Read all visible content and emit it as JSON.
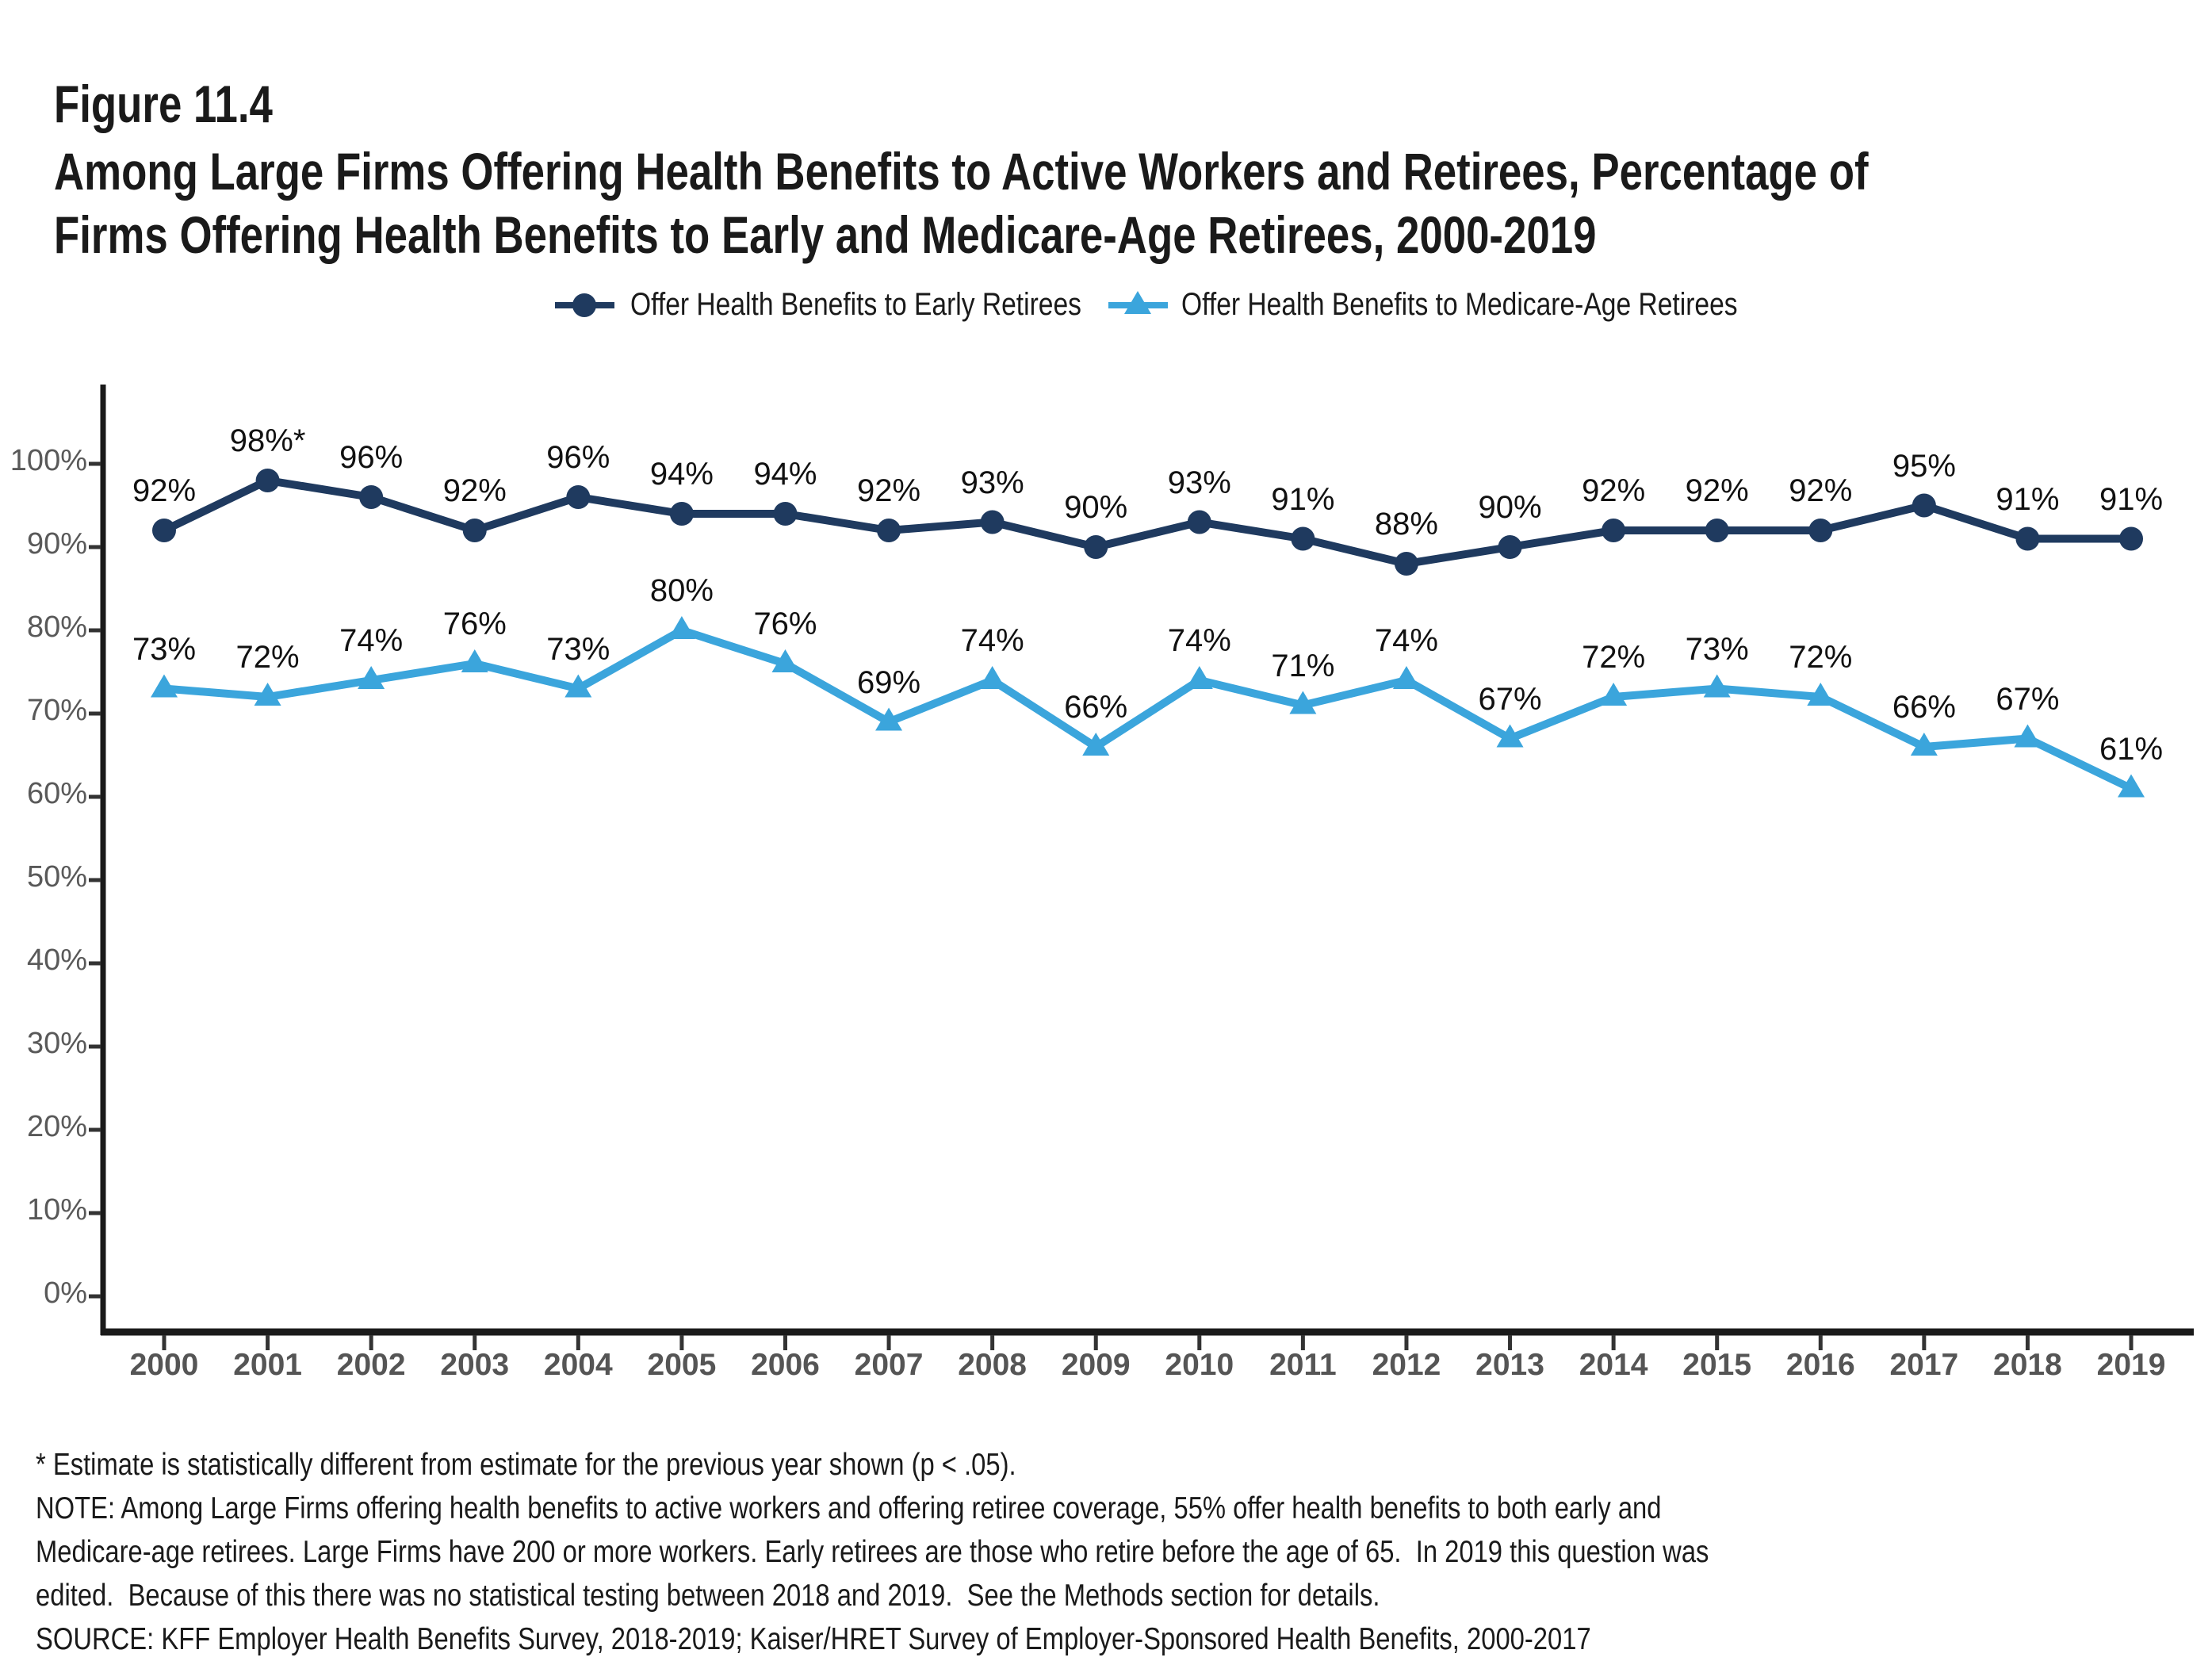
{
  "figure_label": "Figure 11.4",
  "title_line1": "Among Large Firms Offering Health Benefits to Active Workers and Retirees, Percentage of",
  "title_line2": "Firms Offering Health Benefits to Early and Medicare-Age Retirees, 2000-2019",
  "legend": [
    {
      "label": "Offer Health Benefits to Early Retirees",
      "marker": "circle-on-line",
      "color": "#1F3A5F"
    },
    {
      "label": "Offer Health Benefits to Medicare-Age Retirees",
      "marker": "triangle-on-line",
      "color": "#3BA5DC"
    }
  ],
  "chart_data": {
    "type": "line",
    "x": [
      2000,
      2001,
      2002,
      2003,
      2004,
      2005,
      2006,
      2007,
      2008,
      2009,
      2010,
      2011,
      2012,
      2013,
      2014,
      2015,
      2016,
      2017,
      2018,
      2019
    ],
    "series": [
      {
        "name": "Offer Health Benefits to Early Retirees",
        "color": "#1F3A5F",
        "marker": "circle",
        "values": [
          92,
          98,
          96,
          92,
          96,
          94,
          94,
          92,
          93,
          90,
          93,
          91,
          88,
          90,
          92,
          92,
          92,
          95,
          91,
          91
        ],
        "labels": [
          "92%",
          "98%*",
          "96%",
          "92%",
          "96%",
          "94%",
          "94%",
          "92%",
          "93%",
          "90%",
          "93%",
          "91%",
          "88%",
          "90%",
          "92%",
          "92%",
          "92%",
          "95%",
          "91%",
          "91%"
        ]
      },
      {
        "name": "Offer Health Benefits to Medicare-Age Retirees",
        "color": "#3BA5DC",
        "marker": "triangle",
        "values": [
          73,
          72,
          74,
          76,
          73,
          80,
          76,
          69,
          74,
          66,
          74,
          71,
          74,
          67,
          72,
          73,
          72,
          66,
          67,
          61
        ],
        "labels": [
          "73%",
          "72%",
          "74%",
          "76%",
          "73%",
          "80%",
          "76%",
          "69%",
          "74%",
          "66%",
          "74%",
          "71%",
          "74%",
          "67%",
          "72%",
          "73%",
          "72%",
          "66%",
          "67%",
          "61%"
        ]
      }
    ],
    "ylim": [
      0,
      100
    ],
    "ytick_step": 10,
    "ytick_suffix": "%",
    "grid": false,
    "legend_position": "top"
  },
  "footnotes": [
    "* Estimate is statistically different from estimate for the previous year shown (p < .05).",
    "NOTE: Among Large Firms offering health benefits to active workers and offering retiree coverage, 55% offer health benefits to both early and",
    "Medicare-age retirees. Large Firms have 200 or more workers. Early retirees are those who retire before the age of 65.  In 2019 this question was",
    "edited.  Because of this there was no statistical testing between 2018 and 2019.  See the Methods section for details.",
    "SOURCE: KFF Employer Health Benefits Survey, 2018-2019; Kaiser/HRET Survey of Employer-Sponsored Health Benefits, 2000-2017"
  ],
  "axis_colors": {
    "line": "#1a1a1a",
    "tick": "#333333",
    "ylabel": "#595959",
    "xlabel": "#555555"
  }
}
